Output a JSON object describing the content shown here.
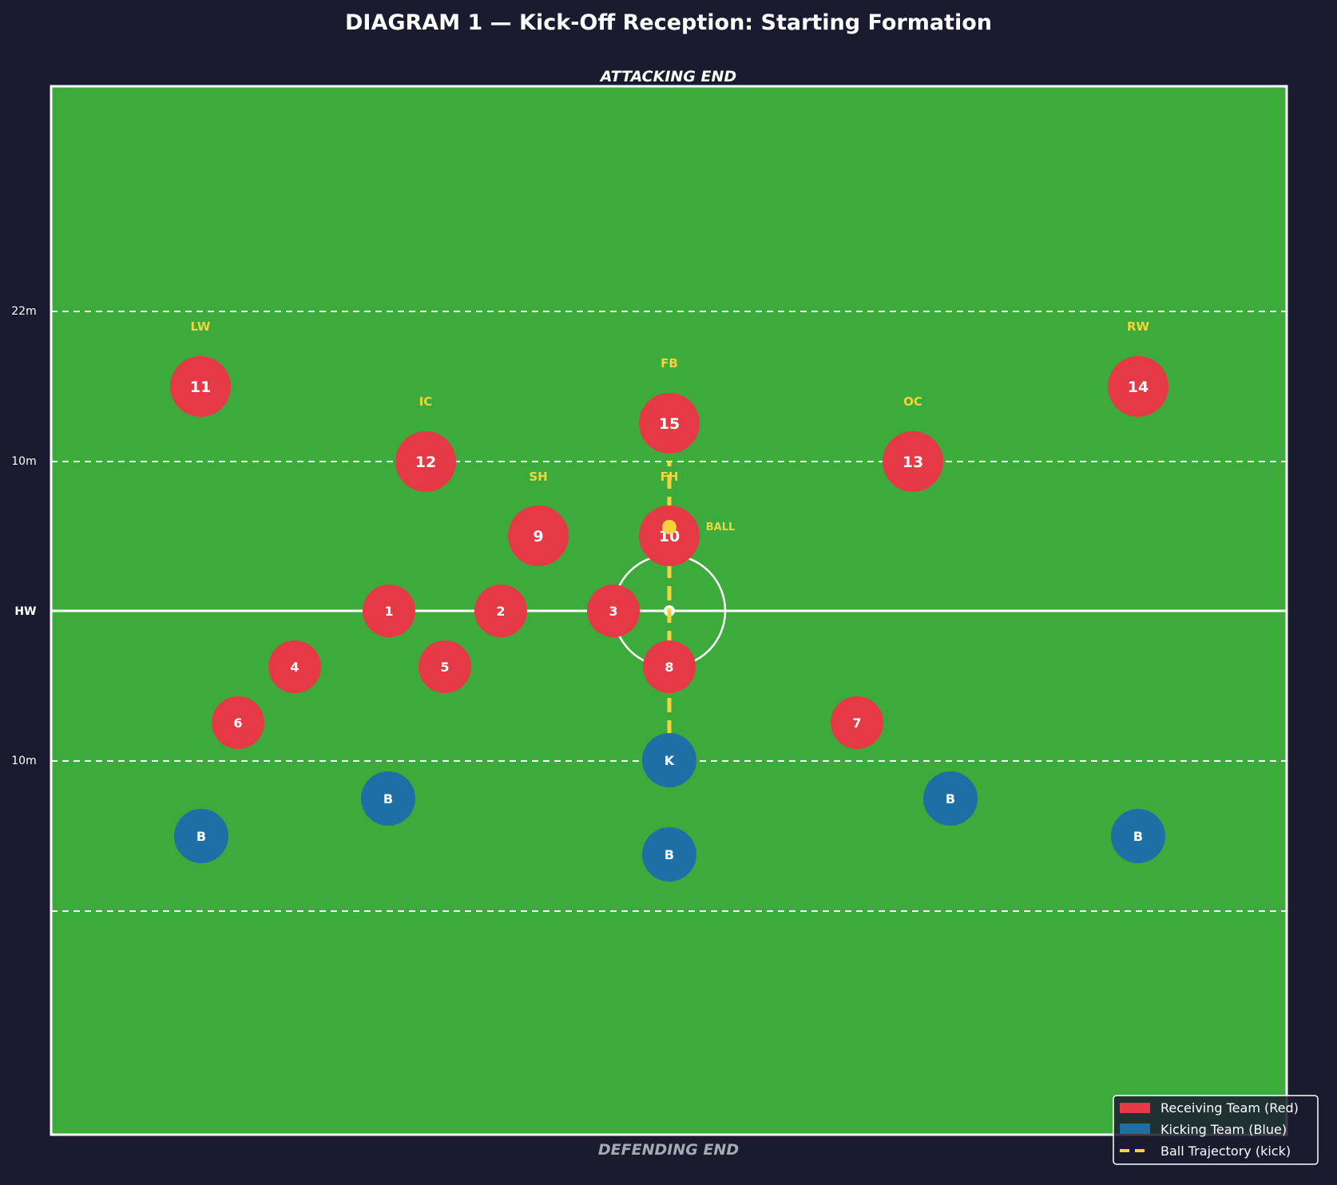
{
  "title": "DIAGRAM 1 — Kick-Off Reception: Starting Formation",
  "attacking_end": "ATTACKING END",
  "defending_end": "DEFENDING END",
  "colors": {
    "background": "#1b1b2f",
    "pitch": "#3cab3c",
    "receiving": "#e63946",
    "kicking": "#1d6fa5",
    "ball": "#f5d33a",
    "lines": "#ffffff"
  },
  "line_labels": {
    "top22": "22m",
    "top10": "10m",
    "halfway": "HW",
    "bottom10": "10m"
  },
  "ball_label": "BALL",
  "receiving_team": [
    {
      "number": "11",
      "position": "LW"
    },
    {
      "number": "14",
      "position": "RW"
    },
    {
      "number": "15",
      "position": "FB"
    },
    {
      "number": "12",
      "position": "IC"
    },
    {
      "number": "13",
      "position": "OC"
    },
    {
      "number": "9",
      "position": "SH"
    },
    {
      "number": "10",
      "position": "FH"
    },
    {
      "number": "1",
      "position": ""
    },
    {
      "number": "2",
      "position": ""
    },
    {
      "number": "3",
      "position": ""
    },
    {
      "number": "4",
      "position": ""
    },
    {
      "number": "5",
      "position": ""
    },
    {
      "number": "8",
      "position": ""
    },
    {
      "number": "6",
      "position": ""
    },
    {
      "number": "7",
      "position": ""
    }
  ],
  "kicking_team": [
    {
      "label": "K"
    },
    {
      "label": "B"
    },
    {
      "label": "B"
    },
    {
      "label": "B"
    },
    {
      "label": "B"
    },
    {
      "label": "B"
    }
  ],
  "legend": [
    {
      "label": "Receiving Team (Red)",
      "type": "receiving"
    },
    {
      "label": "Kicking Team (Blue)",
      "type": "kicking"
    },
    {
      "label": "Ball Trajectory (kick)",
      "type": "ball"
    }
  ]
}
